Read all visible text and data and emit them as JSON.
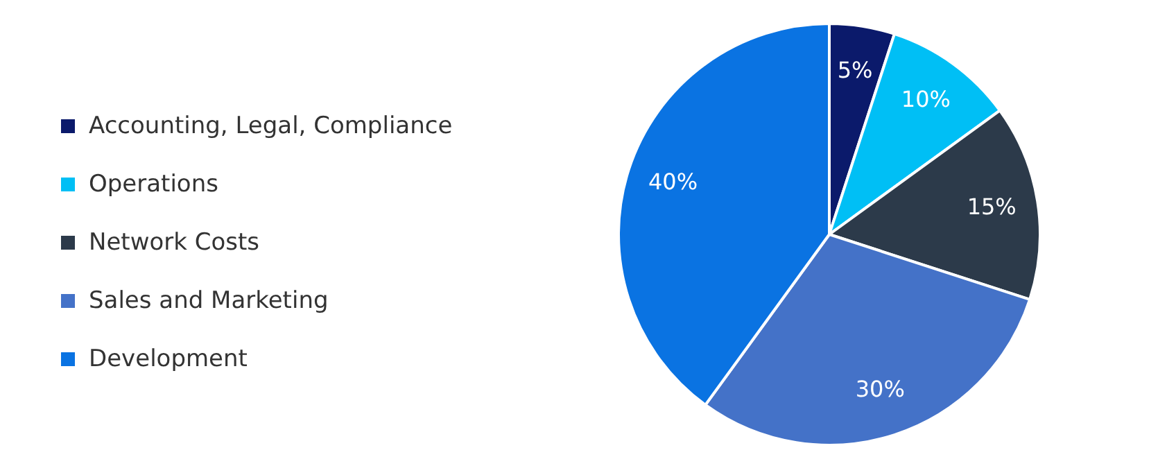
{
  "chart_data": {
    "type": "pie",
    "categories": [
      "Accounting, Legal, Compliance",
      "Operations",
      "Network Costs",
      "Sales and Marketing",
      "Development"
    ],
    "values": [
      5,
      10,
      15,
      30,
      40
    ],
    "colors": [
      "#0b1a6b",
      "#00bff5",
      "#2c3a4a",
      "#4472c8",
      "#0a73e2"
    ],
    "value_labels": [
      "5%",
      "10%",
      "15%",
      "30%",
      "40%"
    ],
    "legend": "left"
  }
}
